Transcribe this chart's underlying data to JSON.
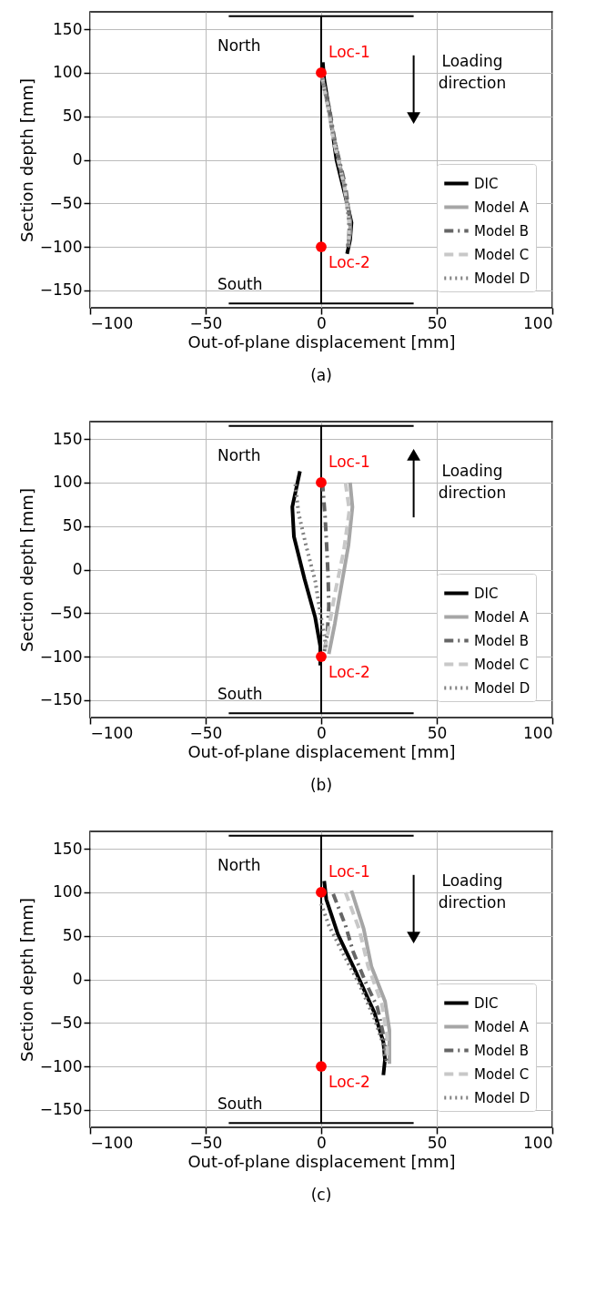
{
  "chart_data": [
    {
      "type": "line",
      "title": "(a)",
      "xlabel": "Out-of-plane displacement [mm]",
      "ylabel": "Section depth [mm]",
      "xlim": [
        -100,
        100
      ],
      "ylim": [
        -170,
        170
      ],
      "xticks": [
        -100,
        -50,
        0,
        50,
        100
      ],
      "yticks": [
        -150,
        -100,
        -50,
        0,
        50,
        100,
        150
      ],
      "grid": true,
      "legend": "bottom right",
      "series": [
        {
          "color": "#000000",
          "x": [
            0,
            0
          ],
          "values": [
            -165,
            165
          ]
        },
        {
          "color": "#000000",
          "x": [
            -40,
            40
          ],
          "values": [
            165,
            165
          ]
        },
        {
          "color": "#000000",
          "x": [
            -40,
            40
          ],
          "values": [
            -165,
            -165
          ]
        },
        {
          "color": "#000000",
          "x": [
            40,
            40
          ],
          "values": [
            120,
            48
          ],
          "marker": "triangle"
        },
        {
          "name": "DIC",
          "color": "#000000",
          "line_style": "solid",
          "x": [
            0.7,
            1.3,
            3.9,
            6.6,
            11.2,
            13.1,
            12.5,
            11.2
          ],
          "values": [
            112,
            92,
            50,
            0,
            -50,
            -72,
            -92,
            -108
          ]
        },
        {
          "name": "Model A",
          "color": "#a6a6a6",
          "line_style": "solid",
          "x": [
            0,
            3,
            6,
            10,
            12.5,
            12.5,
            11.5
          ],
          "values": [
            100,
            60,
            20,
            -30,
            -70,
            -85,
            -100
          ]
        },
        {
          "name": "Model B",
          "color": "#666666",
          "line_style": "dashdot",
          "x": [
            0,
            3.5,
            6,
            10.5,
            12.5,
            12,
            11.5
          ],
          "values": [
            100,
            60,
            20,
            -30,
            -70,
            -85,
            -100
          ]
        },
        {
          "name": "Model C",
          "color": "#c8c8c8",
          "line_style": "dashed",
          "x": [
            0,
            3,
            5.5,
            10,
            12,
            12,
            11.5
          ],
          "values": [
            100,
            60,
            20,
            -30,
            -70,
            -85,
            -100
          ]
        },
        {
          "name": "Model D",
          "color": "#808080",
          "line_style": "dotted",
          "x": [
            0,
            3,
            6,
            10,
            12,
            12.2,
            11.5
          ],
          "values": [
            100,
            60,
            20,
            -30,
            -70,
            -85,
            -100
          ]
        },
        {
          "type": "scatter",
          "color": "#ff0000",
          "marker": "circle",
          "x": [
            0,
            0
          ],
          "values": [
            100,
            -100
          ]
        }
      ],
      "annotations": [
        "Loc-1",
        "Loc-2",
        "North",
        "South",
        "Loading direction"
      ]
    },
    {
      "type": "line",
      "title": "(b)",
      "xlabel": "Out-of-plane displacement [mm]",
      "ylabel": "Section depth [mm]",
      "xlim": [
        -100,
        100
      ],
      "ylim": [
        -170,
        170
      ],
      "xticks": [
        -100,
        -50,
        0,
        50,
        100
      ],
      "yticks": [
        -150,
        -100,
        -50,
        0,
        50,
        100,
        150
      ],
      "grid": true,
      "legend": "bottom right",
      "series": [
        {
          "color": "#000000",
          "x": [
            0,
            0
          ],
          "values": [
            -165,
            165
          ]
        },
        {
          "color": "#000000",
          "x": [
            -40,
            40
          ],
          "values": [
            165,
            165
          ]
        },
        {
          "color": "#000000",
          "x": [
            -40,
            40
          ],
          "values": [
            -165,
            -165
          ]
        },
        {
          "color": "#000000",
          "x": [
            40,
            40
          ],
          "values": [
            60,
            132
          ],
          "marker": "triangle"
        },
        {
          "name": "DIC",
          "color": "#000000",
          "line_style": "solid",
          "x": [
            -9.2,
            -12.5,
            -11.8,
            -7.2,
            -2.6,
            -0.4,
            -0.4
          ],
          "values": [
            113,
            72,
            38,
            -11,
            -55,
            -88,
            -110
          ]
        },
        {
          "name": "Model A",
          "color": "#a6a6a6",
          "line_style": "solid",
          "x": [
            12.5,
            13.5,
            11.8,
            8.5,
            5.9,
            3.3
          ],
          "values": [
            100,
            72,
            28,
            -22,
            -62,
            -97
          ]
        },
        {
          "name": "Model B",
          "color": "#666666",
          "line_style": "dashdot",
          "x": [
            0,
            0.7,
            1.7,
            2.4,
            3,
            3.3,
            2.6,
            1.3
          ],
          "values": [
            100,
            95,
            60,
            25,
            -9,
            -42,
            -75,
            -95
          ]
        },
        {
          "name": "Model C",
          "color": "#c8c8c8",
          "line_style": "dashed",
          "x": [
            10.5,
            12.2,
            9.8,
            5.9,
            2.6,
            1.3
          ],
          "values": [
            100,
            68,
            22,
            -28,
            -78,
            -95
          ]
        },
        {
          "name": "Model D",
          "color": "#808080",
          "line_style": "dotted",
          "x": [
            -11.2,
            -9.8,
            -6.6,
            -2.6,
            -0.7,
            1.3,
            2.2
          ],
          "values": [
            98,
            65,
            28,
            -13,
            -45,
            -75,
            -92
          ]
        },
        {
          "type": "scatter",
          "color": "#ff0000",
          "marker": "circle",
          "x": [
            0,
            0
          ],
          "values": [
            100,
            -100
          ]
        }
      ],
      "annotations": [
        "Loc-1",
        "Loc-2",
        "North",
        "South",
        "Loading direction"
      ]
    },
    {
      "type": "line",
      "title": "(c)",
      "xlabel": "Out-of-plane displacement [mm]",
      "ylabel": "Section depth [mm]",
      "xlim": [
        -100,
        100
      ],
      "ylim": [
        -170,
        170
      ],
      "xticks": [
        -100,
        -50,
        0,
        50,
        100
      ],
      "yticks": [
        -150,
        -100,
        -50,
        0,
        50,
        100,
        150
      ],
      "grid": true,
      "legend": "bottom right",
      "series": [
        {
          "color": "#000000",
          "x": [
            0,
            0
          ],
          "values": [
            -165,
            165
          ]
        },
        {
          "color": "#000000",
          "x": [
            -40,
            40
          ],
          "values": [
            165,
            165
          ]
        },
        {
          "color": "#000000",
          "x": [
            -40,
            40
          ],
          "values": [
            -165,
            -165
          ]
        },
        {
          "color": "#000000",
          "x": [
            40,
            40
          ],
          "values": [
            120,
            48
          ],
          "marker": "triangle"
        },
        {
          "name": "DIC",
          "color": "#000000",
          "line_style": "solid",
          "x": [
            1.3,
            2.2,
            7.2,
            15.1,
            23,
            26.9,
            27.6,
            26.9
          ],
          "values": [
            113,
            92,
            52,
            8,
            -38,
            -72,
            -92,
            -110
          ]
        },
        {
          "name": "Model A",
          "color": "#a6a6a6",
          "line_style": "solid",
          "x": [
            13.1,
            18.4,
            21.7,
            27.6,
            29.5,
            29.5
          ],
          "values": [
            102,
            58,
            15,
            -25,
            -58,
            -97
          ]
        },
        {
          "name": "Model B",
          "color": "#666666",
          "line_style": "dashdot",
          "x": [
            5.2,
            10.5,
            13.8,
            19,
            24.3,
            27.6,
            28.2
          ],
          "values": [
            98,
            62,
            32,
            -2,
            -32,
            -72,
            -95
          ]
        },
        {
          "name": "Model C",
          "color": "#c8c8c8",
          "line_style": "dashed",
          "x": [
            10.5,
            16.4,
            20.3,
            26.2,
            28.5,
            28.5
          ],
          "values": [
            100,
            58,
            15,
            -28,
            -65,
            -95
          ]
        },
        {
          "name": "Model D",
          "color": "#808080",
          "line_style": "dotted",
          "x": [
            0,
            3.3,
            9.8,
            16.4,
            23,
            26.9,
            27.6
          ],
          "values": [
            87,
            62,
            28,
            -5,
            -45,
            -75,
            -92
          ]
        },
        {
          "type": "scatter",
          "color": "#ff0000",
          "marker": "circle",
          "x": [
            0,
            0
          ],
          "values": [
            100,
            -100
          ]
        }
      ],
      "annotations": [
        "Loc-1",
        "Loc-2",
        "North",
        "South",
        "Loading direction"
      ]
    }
  ]
}
